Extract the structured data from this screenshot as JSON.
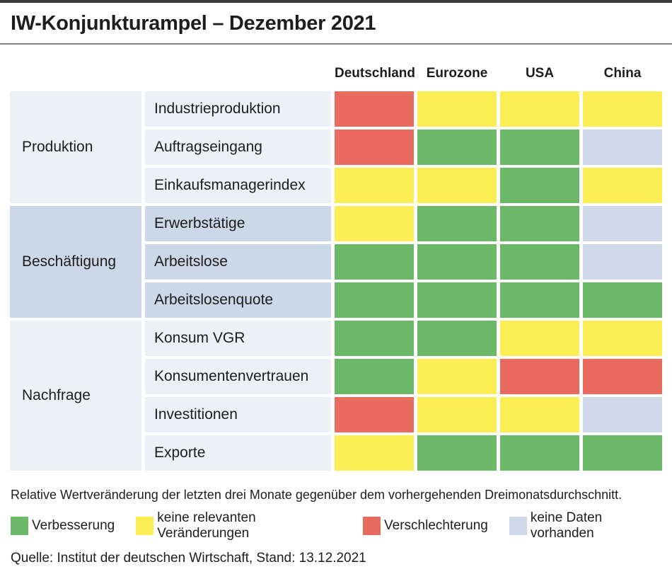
{
  "footnote": "Relative Wertveränderung der letzten drei Monate gegenüber dem vorhergehenden Dreimonatsdurchschnitt.",
  "source": "Quelle: Institut der deutschen Wirtschaft, Stand: 13.12.2021",
  "chart_data": {
    "type": "heatmap",
    "title": "IW-Konjunkturampel – Dezember 2021",
    "columns": [
      "Deutschland",
      "Eurozone",
      "USA",
      "China"
    ],
    "colors": {
      "green": "#6bb968",
      "yellow": "#fdee55",
      "red": "#e96b5f",
      "nodata": "#cfd9e9"
    },
    "legend": [
      {
        "key": "green",
        "label": "Verbesserung"
      },
      {
        "key": "yellow",
        "label": "keine relevanten Veränderungen"
      },
      {
        "key": "red",
        "label": "Verschlechterung"
      },
      {
        "key": "nodata",
        "label": "keine Daten vorhanden"
      }
    ],
    "groups": [
      {
        "name": "Produktion",
        "shade": "light",
        "rows": [
          {
            "label": "Industrieproduktion",
            "values": [
              "red",
              "yellow",
              "yellow",
              "yellow"
            ]
          },
          {
            "label": "Auftragseingang",
            "values": [
              "red",
              "green",
              "green",
              "nodata"
            ]
          },
          {
            "label": "Einkaufsmanagerindex",
            "values": [
              "yellow",
              "yellow",
              "green",
              "yellow"
            ]
          }
        ]
      },
      {
        "name": "Beschäftigung",
        "shade": "dark",
        "rows": [
          {
            "label": "Erwerbstätige",
            "values": [
              "yellow",
              "green",
              "green",
              "nodata"
            ]
          },
          {
            "label": "Arbeitslose",
            "values": [
              "green",
              "green",
              "green",
              "nodata"
            ]
          },
          {
            "label": "Arbeitslosenquote",
            "values": [
              "green",
              "green",
              "green",
              "green"
            ]
          }
        ]
      },
      {
        "name": "Nachfrage",
        "shade": "light",
        "rows": [
          {
            "label": "Konsum VGR",
            "values": [
              "green",
              "green",
              "yellow",
              "yellow"
            ]
          },
          {
            "label": "Konsumentenvertrauen",
            "values": [
              "green",
              "yellow",
              "red",
              "red"
            ]
          },
          {
            "label": "Investitionen",
            "values": [
              "red",
              "yellow",
              "yellow",
              "nodata"
            ]
          },
          {
            "label": "Exporte",
            "values": [
              "yellow",
              "green",
              "green",
              "green"
            ]
          }
        ]
      }
    ]
  }
}
